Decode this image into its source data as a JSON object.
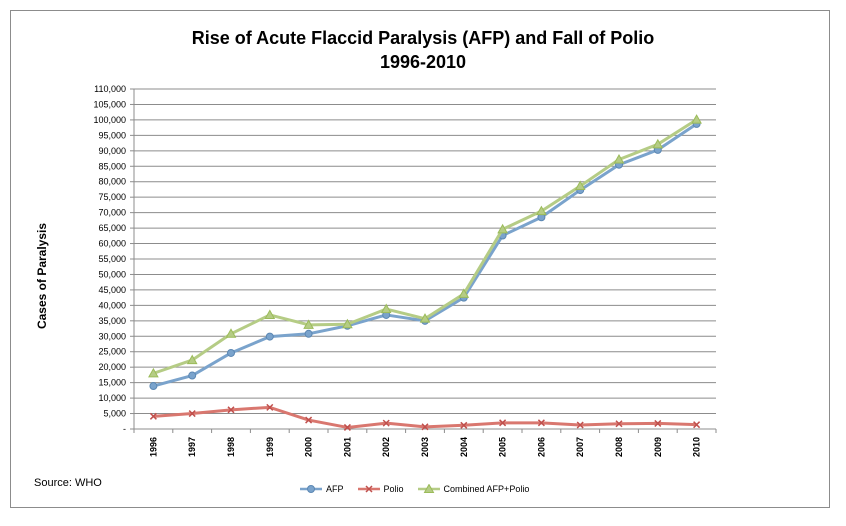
{
  "title_line1": "Rise of Acute Flaccid Paralysis (AFP) and Fall of Polio",
  "title_line2": "1996-2010",
  "source": "Source: WHO",
  "chart_data": {
    "type": "line",
    "title": "Rise of Acute Flaccid Paralysis (AFP) and Fall of Polio 1996-2010",
    "xlabel": "",
    "ylabel": "Cases of Paralysis",
    "categories": [
      "1996",
      "1997",
      "1998",
      "1999",
      "2000",
      "2001",
      "2002",
      "2003",
      "2004",
      "2005",
      "2006",
      "2007",
      "2008",
      "2009",
      "2010"
    ],
    "ylim": [
      0,
      110000
    ],
    "ytick_step": 5000,
    "ytick_labels": [
      "-",
      "5,000",
      "10,000",
      "15,000",
      "20,000",
      "25,000",
      "30,000",
      "35,000",
      "40,000",
      "45,000",
      "50,000",
      "55,000",
      "60,000",
      "65,000",
      "70,000",
      "75,000",
      "80,000",
      "85,000",
      "90,000",
      "95,000",
      "100,000",
      "105,000",
      "110,000"
    ],
    "grid": true,
    "legend": "bottom",
    "series": [
      {
        "name": "AFP",
        "color": "#7aa3cc",
        "marker": "circle",
        "values": [
          13900,
          17300,
          24600,
          29900,
          30800,
          33400,
          36900,
          35000,
          42500,
          62600,
          68500,
          77300,
          85500,
          90300,
          98700
        ]
      },
      {
        "name": "Polio",
        "color": "#d9776f",
        "marker": "x",
        "values": [
          4100,
          5000,
          6200,
          7000,
          2900,
          500,
          1900,
          700,
          1200,
          2000,
          2000,
          1300,
          1700,
          1800,
          1400
        ]
      },
      {
        "name": "Combined AFP+Polio",
        "color": "#b5cc85",
        "marker": "triangle",
        "values": [
          18000,
          22300,
          30800,
          36900,
          33700,
          33900,
          38800,
          35700,
          43700,
          64600,
          70500,
          78600,
          87200,
          92100,
          100100
        ]
      }
    ]
  }
}
